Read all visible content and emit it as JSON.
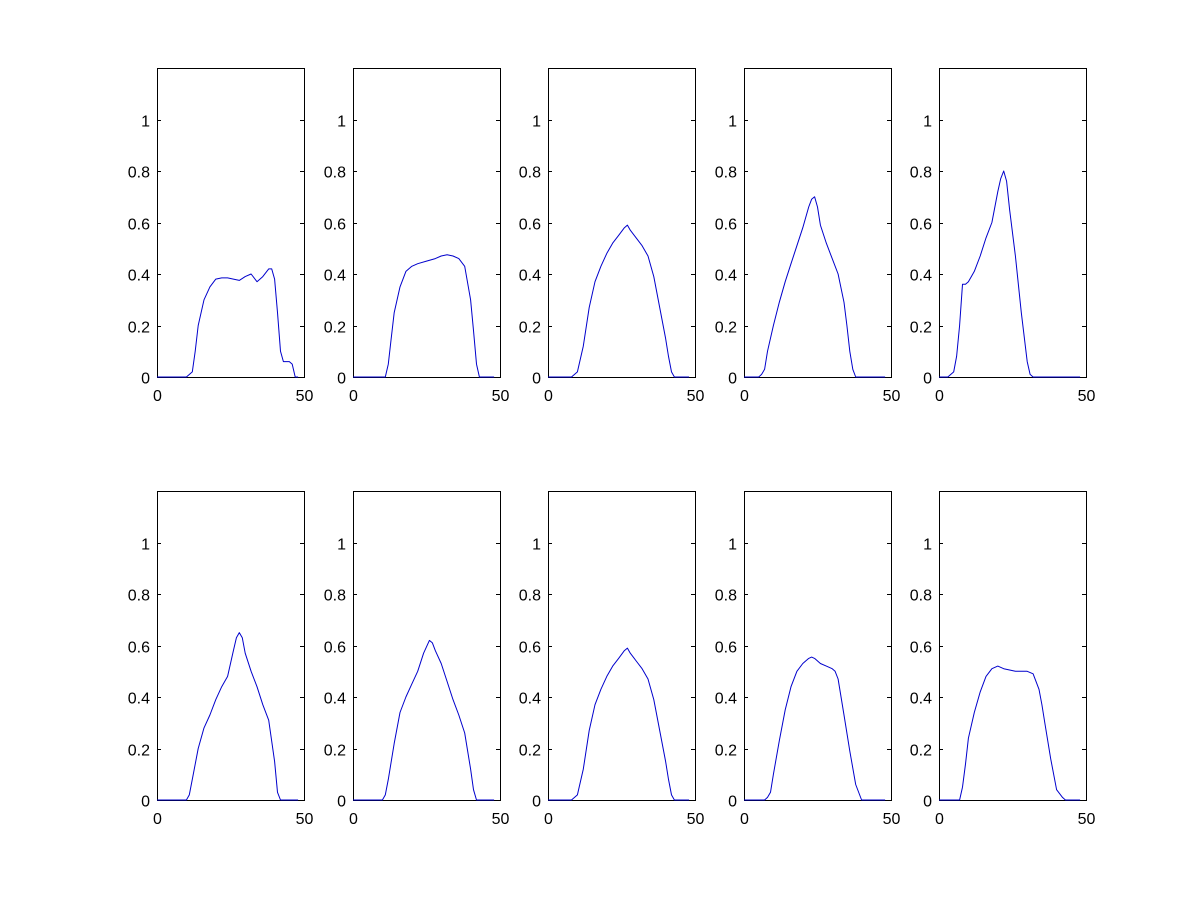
{
  "figure": {
    "background": "#ffffff"
  },
  "chart_data": [
    {
      "type": "line",
      "xlim": [
        0,
        50
      ],
      "ylim": [
        0,
        1.2
      ],
      "xticks": [
        "0",
        "50"
      ],
      "yticks": [
        "0",
        "0.2",
        "0.4",
        "0.6",
        "0.8",
        "1"
      ],
      "color": "#0000cc",
      "grid": false,
      "series": [
        {
          "x": [
            0,
            10,
            12,
            13,
            14,
            16,
            18,
            20,
            22,
            24,
            26,
            28,
            30,
            32,
            34,
            36,
            38,
            39,
            40,
            41,
            42,
            43,
            44,
            45,
            46,
            47,
            48
          ],
          "y": [
            0,
            0,
            0.02,
            0.1,
            0.2,
            0.3,
            0.35,
            0.38,
            0.385,
            0.385,
            0.38,
            0.375,
            0.39,
            0.4,
            0.37,
            0.39,
            0.42,
            0.42,
            0.38,
            0.25,
            0.1,
            0.06,
            0.06,
            0.06,
            0.05,
            0,
            0
          ]
        }
      ]
    },
    {
      "type": "line",
      "xlim": [
        0,
        50
      ],
      "ylim": [
        0,
        1.2
      ],
      "xticks": [
        "0",
        "50"
      ],
      "yticks": [
        "0",
        "0.2",
        "0.4",
        "0.6",
        "0.8",
        "1"
      ],
      "color": "#0000cc",
      "grid": false,
      "series": [
        {
          "x": [
            0,
            5,
            8,
            11,
            12,
            13,
            14,
            16,
            18,
            20,
            22,
            25,
            28,
            30,
            32,
            34,
            36,
            38,
            40,
            41,
            42,
            43,
            44,
            46,
            48
          ],
          "y": [
            0,
            0,
            0,
            0,
            0.05,
            0.15,
            0.25,
            0.35,
            0.41,
            0.43,
            0.44,
            0.45,
            0.46,
            0.47,
            0.475,
            0.47,
            0.46,
            0.43,
            0.3,
            0.18,
            0.05,
            0,
            0,
            0,
            0
          ]
        }
      ]
    },
    {
      "type": "line",
      "xlim": [
        0,
        50
      ],
      "ylim": [
        0,
        1.2
      ],
      "xticks": [
        "0",
        "50"
      ],
      "yticks": [
        "0",
        "0.2",
        "0.4",
        "0.6",
        "0.8",
        "1"
      ],
      "color": "#0000cc",
      "grid": false,
      "series": [
        {
          "x": [
            0,
            5,
            8,
            10,
            12,
            14,
            16,
            18,
            20,
            22,
            24,
            26,
            27,
            28,
            30,
            32,
            34,
            36,
            38,
            40,
            41,
            42,
            43,
            44,
            48
          ],
          "y": [
            0,
            0,
            0,
            0.02,
            0.12,
            0.27,
            0.37,
            0.43,
            0.48,
            0.52,
            0.55,
            0.58,
            0.59,
            0.57,
            0.54,
            0.51,
            0.47,
            0.39,
            0.27,
            0.15,
            0.08,
            0.02,
            0,
            0,
            0
          ]
        }
      ]
    },
    {
      "type": "line",
      "xlim": [
        0,
        50
      ],
      "ylim": [
        0,
        1.2
      ],
      "xticks": [
        "0",
        "50"
      ],
      "yticks": [
        "0",
        "0.2",
        "0.4",
        "0.6",
        "0.8",
        "1"
      ],
      "color": "#0000cc",
      "grid": false,
      "series": [
        {
          "x": [
            0,
            5,
            6,
            7,
            8,
            10,
            12,
            14,
            16,
            18,
            20,
            22,
            23,
            24,
            25,
            26,
            28,
            30,
            32,
            34,
            35,
            36,
            37,
            38,
            39,
            40,
            42,
            48
          ],
          "y": [
            0,
            0,
            0.01,
            0.03,
            0.1,
            0.2,
            0.29,
            0.37,
            0.44,
            0.51,
            0.58,
            0.66,
            0.69,
            0.7,
            0.66,
            0.59,
            0.52,
            0.46,
            0.4,
            0.29,
            0.2,
            0.1,
            0.03,
            0,
            0,
            0,
            0,
            0
          ]
        }
      ]
    },
    {
      "type": "line",
      "xlim": [
        0,
        50
      ],
      "ylim": [
        0,
        1.2
      ],
      "xticks": [
        "0",
        "50"
      ],
      "yticks": [
        "0",
        "0.2",
        "0.4",
        "0.6",
        "0.8",
        "1"
      ],
      "color": "#0000cc",
      "grid": false,
      "series": [
        {
          "x": [
            0,
            3,
            5,
            6,
            7,
            8,
            9,
            10,
            12,
            14,
            16,
            18,
            20,
            21,
            22,
            23,
            24,
            26,
            28,
            30,
            31,
            32,
            35,
            37,
            40,
            48
          ],
          "y": [
            0,
            0,
            0.02,
            0.08,
            0.2,
            0.36,
            0.36,
            0.37,
            0.41,
            0.47,
            0.54,
            0.6,
            0.72,
            0.77,
            0.8,
            0.76,
            0.65,
            0.47,
            0.25,
            0.06,
            0.01,
            0,
            0,
            0,
            0,
            0
          ]
        }
      ]
    },
    {
      "type": "line",
      "xlim": [
        0,
        50
      ],
      "ylim": [
        0,
        1.2
      ],
      "xticks": [
        "0",
        "50"
      ],
      "yticks": [
        "0",
        "0.2",
        "0.4",
        "0.6",
        "0.8",
        "1"
      ],
      "color": "#0000cc",
      "grid": false,
      "series": [
        {
          "x": [
            0,
            5,
            10,
            11,
            12,
            14,
            16,
            18,
            20,
            22,
            24,
            26,
            27,
            28,
            29,
            30,
            32,
            34,
            36,
            38,
            40,
            41,
            42,
            48
          ],
          "y": [
            0,
            0,
            0,
            0.02,
            0.08,
            0.2,
            0.28,
            0.33,
            0.39,
            0.44,
            0.48,
            0.58,
            0.63,
            0.65,
            0.63,
            0.57,
            0.5,
            0.44,
            0.37,
            0.31,
            0.15,
            0.03,
            0,
            0
          ]
        }
      ]
    },
    {
      "type": "line",
      "xlim": [
        0,
        50
      ],
      "ylim": [
        0,
        1.2
      ],
      "xticks": [
        "0",
        "50"
      ],
      "yticks": [
        "0",
        "0.2",
        "0.4",
        "0.6",
        "0.8",
        "1"
      ],
      "color": "#0000cc",
      "grid": false,
      "series": [
        {
          "x": [
            0,
            5,
            10,
            11,
            12,
            14,
            16,
            18,
            20,
            22,
            24,
            26,
            27,
            28,
            30,
            32,
            34,
            36,
            38,
            40,
            41,
            42,
            43,
            48
          ],
          "y": [
            0,
            0,
            0,
            0.02,
            0.08,
            0.22,
            0.34,
            0.4,
            0.45,
            0.5,
            0.57,
            0.62,
            0.61,
            0.58,
            0.53,
            0.46,
            0.39,
            0.33,
            0.26,
            0.12,
            0.04,
            0,
            0,
            0
          ]
        }
      ]
    },
    {
      "type": "line",
      "xlim": [
        0,
        50
      ],
      "ylim": [
        0,
        1.2
      ],
      "xticks": [
        "0",
        "50"
      ],
      "yticks": [
        "0",
        "0.2",
        "0.4",
        "0.6",
        "0.8",
        "1"
      ],
      "color": "#0000cc",
      "grid": false,
      "series": [
        {
          "x": [
            0,
            5,
            8,
            10,
            12,
            14,
            16,
            18,
            20,
            22,
            24,
            26,
            27,
            28,
            30,
            32,
            34,
            36,
            38,
            40,
            41,
            42,
            43,
            44,
            48
          ],
          "y": [
            0,
            0,
            0,
            0.02,
            0.12,
            0.27,
            0.37,
            0.43,
            0.48,
            0.52,
            0.55,
            0.58,
            0.59,
            0.57,
            0.54,
            0.51,
            0.47,
            0.39,
            0.27,
            0.15,
            0.08,
            0.02,
            0,
            0,
            0
          ]
        }
      ]
    },
    {
      "type": "line",
      "xlim": [
        0,
        50
      ],
      "ylim": [
        0,
        1.2
      ],
      "xticks": [
        "0",
        "50"
      ],
      "yticks": [
        "0",
        "0.2",
        "0.4",
        "0.6",
        "0.8",
        "1"
      ],
      "color": "#0000cc",
      "grid": false,
      "series": [
        {
          "x": [
            0,
            5,
            7,
            8,
            9,
            10,
            12,
            14,
            16,
            18,
            20,
            22,
            23,
            24,
            26,
            28,
            30,
            31,
            32,
            34,
            36,
            38,
            40,
            41,
            42,
            48
          ],
          "y": [
            0,
            0,
            0,
            0.01,
            0.03,
            0.1,
            0.23,
            0.35,
            0.44,
            0.5,
            0.53,
            0.55,
            0.555,
            0.55,
            0.53,
            0.52,
            0.51,
            0.5,
            0.47,
            0.33,
            0.19,
            0.06,
            0,
            0,
            0,
            0
          ]
        }
      ]
    },
    {
      "type": "line",
      "xlim": [
        0,
        50
      ],
      "ylim": [
        0,
        1.2
      ],
      "xticks": [
        "0",
        "50"
      ],
      "yticks": [
        "0",
        "0.2",
        "0.4",
        "0.6",
        "0.8",
        "1"
      ],
      "color": "#0000cc",
      "grid": false,
      "series": [
        {
          "x": [
            0,
            5,
            7,
            8,
            9,
            10,
            12,
            14,
            16,
            18,
            20,
            22,
            24,
            26,
            28,
            30,
            32,
            34,
            35,
            36,
            38,
            40,
            42,
            43,
            44,
            48
          ],
          "y": [
            0,
            0,
            0,
            0.05,
            0.14,
            0.24,
            0.34,
            0.42,
            0.48,
            0.51,
            0.52,
            0.51,
            0.505,
            0.5,
            0.5,
            0.5,
            0.49,
            0.43,
            0.37,
            0.3,
            0.16,
            0.04,
            0.01,
            0,
            0,
            0
          ]
        }
      ]
    }
  ]
}
